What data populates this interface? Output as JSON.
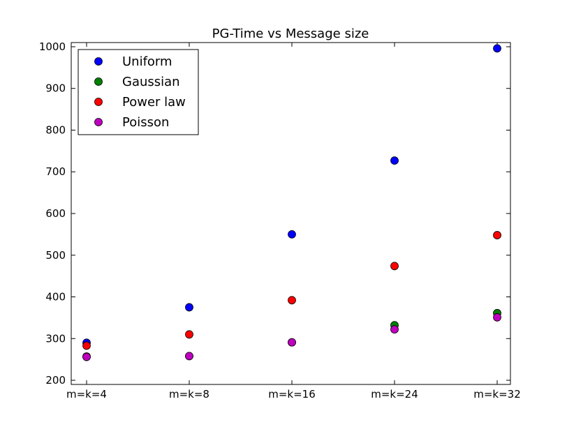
{
  "chart_data": {
    "type": "scatter",
    "title": "PG-Time vs Message size",
    "xlabel": "",
    "ylabel": "",
    "categories": [
      "m=k=4",
      "m=k=8",
      "m=k=16",
      "m=k=24",
      "m=k=32"
    ],
    "ylim": [
      190,
      1010
    ],
    "yticks": [
      200,
      300,
      400,
      500,
      600,
      700,
      800,
      900,
      1000
    ],
    "grid": false,
    "legend_position": "top-left",
    "series": [
      {
        "name": "Uniform",
        "color": "#0000ff",
        "values": [
          290,
          375,
          550,
          727,
          996
        ]
      },
      {
        "name": "Gaussian",
        "color": "#008000",
        "values": [
          257,
          258,
          291,
          332,
          361
        ]
      },
      {
        "name": "Power law",
        "color": "#ff0000",
        "values": [
          283,
          310,
          392,
          474,
          548
        ]
      },
      {
        "name": "Poisson",
        "color": "#bf00bf",
        "values": [
          256,
          258,
          291,
          322,
          351
        ]
      }
    ]
  }
}
